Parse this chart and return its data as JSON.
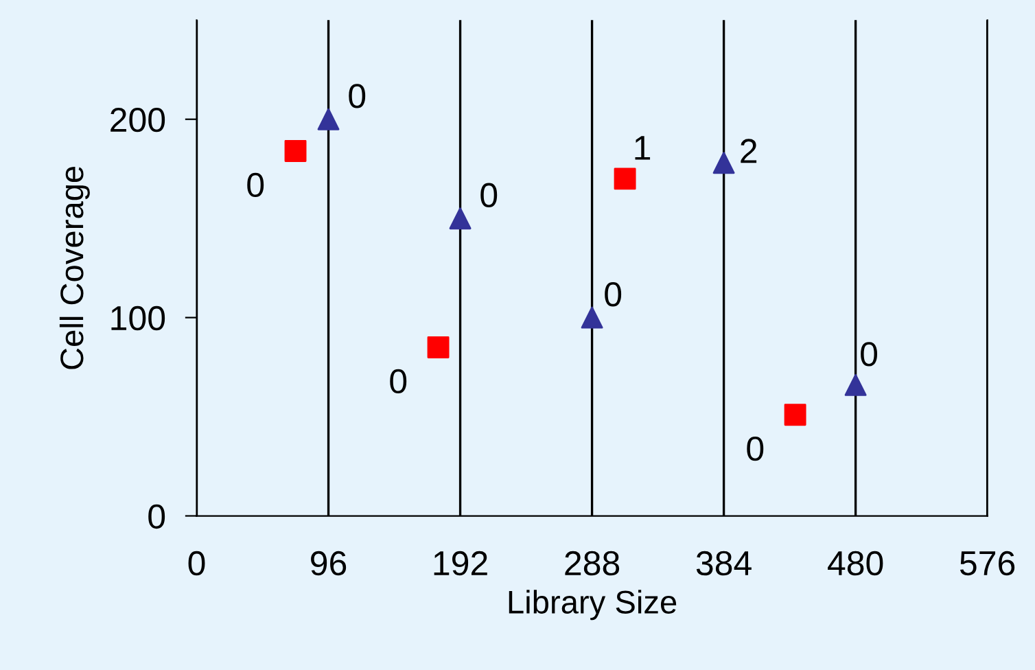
{
  "chart_data": {
    "type": "scatter",
    "xlabel": "Library Size",
    "ylabel": "Cell Coverage",
    "xlim": [
      0,
      576
    ],
    "xticks": [
      0,
      96,
      192,
      288,
      384,
      480,
      576
    ],
    "ylim": [
      0,
      250
    ],
    "yticks": [
      0,
      100,
      200
    ],
    "grid": "x",
    "legend": false,
    "series": [
      {
        "color": "#ff0000",
        "marker": "square",
        "x": [
          72,
          176,
          312,
          436
        ],
        "values": [
          184,
          85,
          170,
          51
        ]
      },
      {
        "color": "#333399",
        "marker": "triangle",
        "x": [
          96,
          192,
          288,
          384,
          480
        ],
        "values": [
          200,
          150,
          100,
          178,
          66
        ]
      }
    ],
    "annotations": [
      {
        "text": "0",
        "x": 72,
        "y": 184
      },
      {
        "text": "0",
        "x": 176,
        "y": 85
      },
      {
        "text": "1",
        "x": 312,
        "y": 170
      },
      {
        "text": "0",
        "x": 436,
        "y": 51
      },
      {
        "text": "0",
        "x": 96,
        "y": 200
      },
      {
        "text": "0",
        "x": 192,
        "y": 150
      },
      {
        "text": "0",
        "x": 288,
        "y": 100
      },
      {
        "text": "2",
        "x": 384,
        "y": 178
      },
      {
        "text": "0",
        "x": 480,
        "y": 66
      }
    ]
  }
}
